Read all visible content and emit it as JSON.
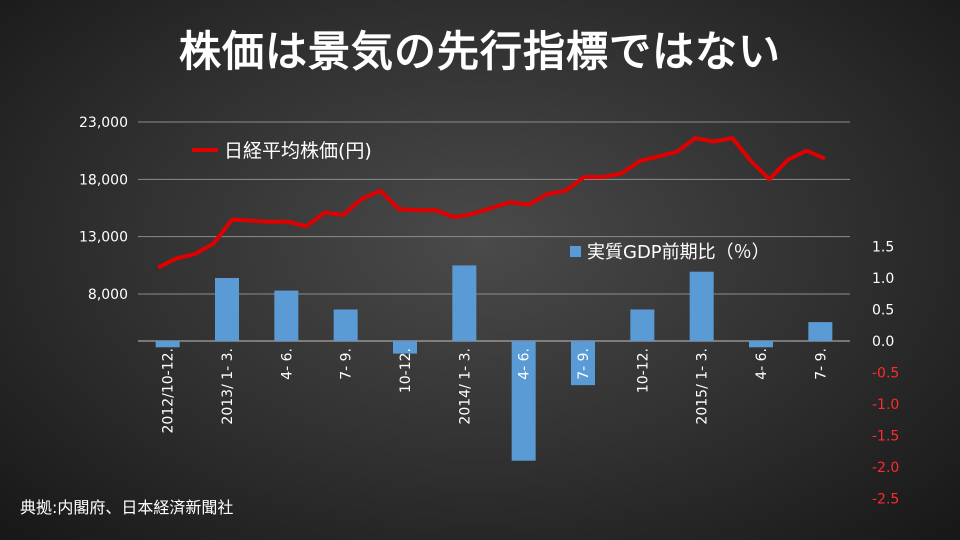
{
  "title": "株価は景気の先行指標ではない",
  "source": "典拠:内閣府、日本経済新聞社",
  "chart_data": {
    "type": "bar+line",
    "categories": [
      "2012/10-12.",
      "2013/ 1- 3.",
      "4- 6.",
      "7- 9.",
      "10-12.",
      "2014/ 1- 3.",
      "4- 6.",
      "7- 9.",
      "10-12.",
      "2015/ 1- 3.",
      "4- 6.",
      "7- 9."
    ],
    "left_axis": {
      "ticks": [
        8000,
        13000,
        18000,
        23000
      ],
      "tick_labels": [
        "8,000",
        "13,000",
        "18,000",
        "23,000"
      ],
      "range": [
        3000,
        23000
      ]
    },
    "right_axis": {
      "ticks": [
        1.5,
        1.0,
        0.5,
        0.0,
        -0.5,
        -1.0,
        -1.5,
        -2.0,
        -2.5
      ],
      "tick_labels": [
        "1.5",
        "1.0",
        "0.5",
        "0.0",
        "-0.5",
        "-1.0",
        "-1.5",
        "-2.0",
        "-2.5"
      ],
      "range": [
        -2.5,
        1.5
      ],
      "positive_color": "#ffffff",
      "negative_color": "#ff2a2a"
    },
    "bar_series": {
      "name": "実質GDP前期比（％）",
      "color": "#5b9bd5",
      "values": [
        -0.1,
        1.0,
        0.8,
        0.5,
        -0.2,
        1.2,
        -1.9,
        -0.7,
        0.5,
        1.1,
        -0.1,
        0.3
      ]
    },
    "line_series": {
      "name": "日経平均株価(円)",
      "color": "#e00000",
      "values": [
        10300,
        11100,
        11500,
        12400,
        14500,
        14400,
        14300,
        14300,
        13900,
        15100,
        14900,
        16300,
        17000,
        15400,
        15300,
        15300,
        14700,
        15000,
        15500,
        16000,
        15800,
        16700,
        17000,
        18200,
        18200,
        18500,
        19600,
        20000,
        20400,
        21600,
        21300,
        21600,
        19600,
        18000,
        19700,
        20500,
        19800
      ]
    },
    "grid": true,
    "legend": [
      "top-left (line)",
      "middle-right (bars)"
    ]
  }
}
